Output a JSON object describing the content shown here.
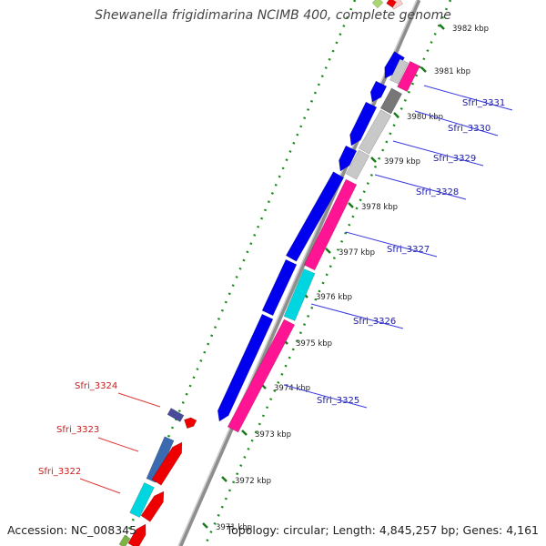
{
  "title": "Shewanella frigidimarina NCIMB 400, complete genome",
  "accession": "Accession: NC_008345",
  "stats": "Topology: circular; Length: 4,845,257 bp; Genes: 4,161",
  "tick_labels": [
    "3982 kbp",
    "3981 kbp",
    "3980 kbp",
    "3979 kbp",
    "3978 kbp",
    "3977 kbp",
    "3976 kbp",
    "3975 kbp",
    "3974 kbp",
    "3973 kbp",
    "3972 kbp",
    "3971 kbp"
  ],
  "forward_gene_labels": [
    "Sfri_3331",
    "Sfri_3330",
    "Sfri_3329",
    "Sfri_3328",
    "Sfri_3327",
    "Sfri_3326",
    "Sfri_3325"
  ],
  "reverse_gene_labels": [
    "Sfri_3324",
    "Sfri_3323",
    "Sfri_3322"
  ],
  "colors": {
    "forward_label": "#1a1aa6",
    "reverse_label": "#cc1a1a",
    "cds": "#0000ee",
    "trna_like": "#ff1493",
    "cyan_feature": "#00d6e0",
    "rna_red": "#ee0000",
    "gray_feature": "#c8c8c8",
    "dark_gray_feature": "#777777",
    "backbone": "#9a9a9a",
    "tick_green": "#1a7a1a"
  }
}
